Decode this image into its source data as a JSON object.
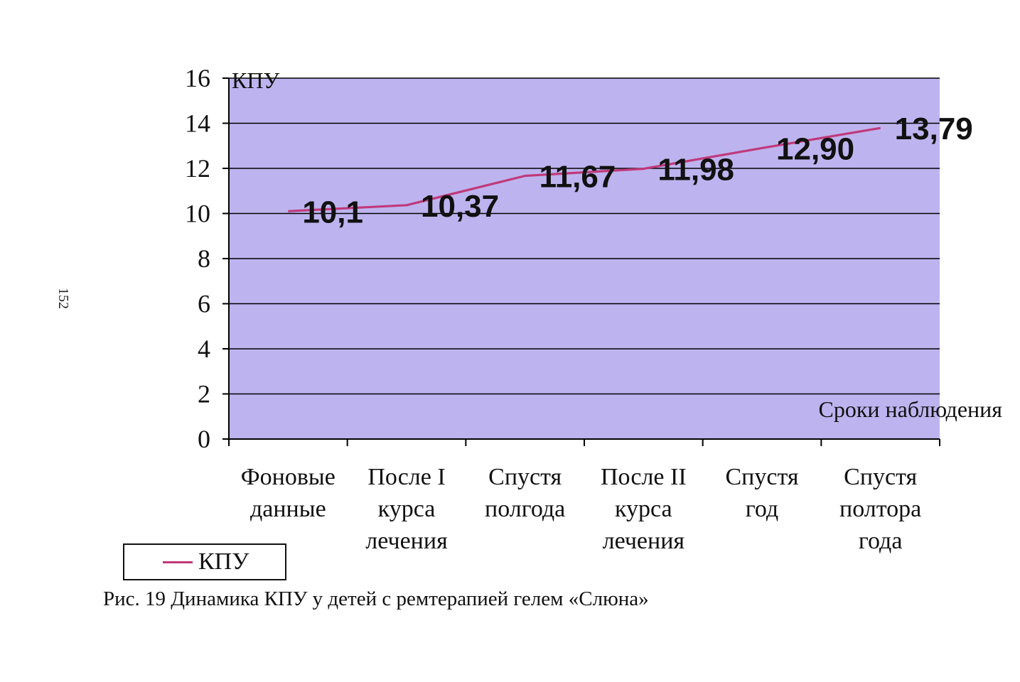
{
  "page_number": "152",
  "caption": "Рис. 19 Динамика КПУ у детей с ремтерапией гелем «Слюна»",
  "legend": {
    "label": "КПУ"
  },
  "colors": {
    "plot_background": "#bdb4ef",
    "line": "#c0397a",
    "grid": "#000000"
  },
  "chart_data": {
    "type": "line",
    "ylabel": "КПУ",
    "xlabel": "Сроки наблюдения",
    "ylim": [
      0,
      16
    ],
    "yticks": [
      0,
      2,
      4,
      6,
      8,
      10,
      12,
      14,
      16
    ],
    "grid": true,
    "legend_position": "bottom-left",
    "categories": [
      [
        "Фоновые",
        "данные"
      ],
      [
        "После I",
        "курса",
        "лечения"
      ],
      [
        "Спустя",
        "полгода"
      ],
      [
        "После II",
        "курса",
        "лечения"
      ],
      [
        "Спустя",
        "год"
      ],
      [
        "Спустя",
        "полтора",
        "года"
      ]
    ],
    "series": [
      {
        "name": "КПУ",
        "values": [
          10.1,
          10.37,
          11.67,
          11.98,
          12.9,
          13.79
        ],
        "labels": [
          "10,1",
          "10,37",
          "11,67",
          "11,98",
          "12,90",
          "13,79"
        ]
      }
    ]
  }
}
